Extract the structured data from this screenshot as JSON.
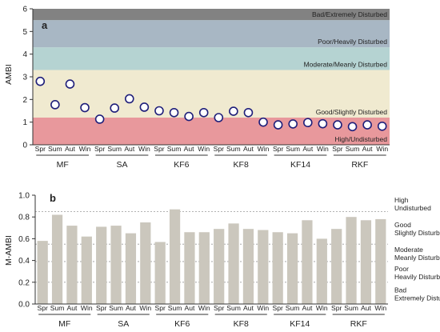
{
  "chart_data": [
    {
      "panel": "a",
      "type": "scatter",
      "ylabel": "AMBI",
      "ylim": [
        0,
        6
      ],
      "yticks": [
        0,
        1,
        2,
        3,
        4,
        5,
        6
      ],
      "sites": [
        "MF",
        "SA",
        "KF6",
        "KF8",
        "KF14",
        "RKF"
      ],
      "seasons": [
        "Spr",
        "Sum",
        "Aut",
        "Win"
      ],
      "values": [
        2.8,
        1.77,
        2.68,
        1.64,
        1.13,
        1.62,
        2.03,
        1.66,
        1.5,
        1.42,
        1.25,
        1.42,
        1.2,
        1.48,
        1.42,
        1.0,
        0.88,
        0.92,
        0.98,
        0.93,
        0.88,
        0.8,
        0.88,
        0.82
      ],
      "bands": [
        {
          "label": "High/Undisturbed",
          "from": 0,
          "to": 1.2,
          "color": "#e8989c"
        },
        {
          "label": "Good/Slightly Disturbed",
          "from": 1.2,
          "to": 3.3,
          "color": "#f0ead0"
        },
        {
          "label": "Moderate/Meanly Disturbed",
          "from": 3.3,
          "to": 4.3,
          "color": "#b5d3d2"
        },
        {
          "label": "Poor/Heavily Disturbed",
          "from": 4.3,
          "to": 5.5,
          "color": "#a8b7c4"
        },
        {
          "label": "Bad/Extremely Disturbed",
          "from": 5.5,
          "to": 6,
          "color": "#828282"
        }
      ],
      "marker_color": "#1f1f7a"
    },
    {
      "panel": "b",
      "type": "bar",
      "ylabel": "M-AMBI",
      "ylim": [
        0,
        1.0
      ],
      "yticks": [
        "0.0",
        "0.2",
        "0.4",
        "0.6",
        "0.8",
        "1.0"
      ],
      "sites": [
        "MF",
        "SA",
        "KF6",
        "KF8",
        "KF14",
        "RKF"
      ],
      "seasons": [
        "Spr",
        "Sum",
        "Aut",
        "Win"
      ],
      "values": [
        0.58,
        0.82,
        0.72,
        0.62,
        0.71,
        0.72,
        0.65,
        0.75,
        0.57,
        0.87,
        0.66,
        0.66,
        0.69,
        0.74,
        0.69,
        0.68,
        0.66,
        0.65,
        0.77,
        0.6,
        0.69,
        0.8,
        0.77,
        0.78
      ],
      "bar_color": "#cbc7bd",
      "thresholds": [
        0.85,
        0.55,
        0.39,
        0.2
      ],
      "classes": [
        {
          "line1": "High",
          "line2": "Undisturbed"
        },
        {
          "line1": "Good",
          "line2": "Slightly Disturbed"
        },
        {
          "line1": "Moderate",
          "line2": "Meanly Disturbed"
        },
        {
          "line1": "Poor",
          "line2": "Heavily Disturbed"
        },
        {
          "line1": "Bad",
          "line2": "Extremely Disturbed"
        }
      ]
    }
  ]
}
